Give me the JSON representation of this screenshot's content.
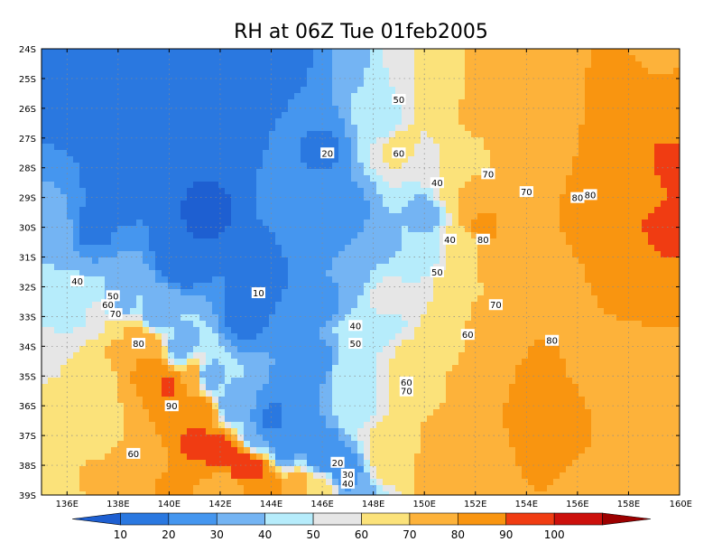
{
  "chart_data": {
    "type": "heatmap",
    "title": "RH at 06Z Tue 01feb2005",
    "xlim": [
      135,
      160
    ],
    "ylim": [
      -39,
      -24
    ],
    "x_ticks": [
      {
        "v": 136,
        "label": "136E"
      },
      {
        "v": 138,
        "label": "138E"
      },
      {
        "v": 140,
        "label": "140E"
      },
      {
        "v": 142,
        "label": "142E"
      },
      {
        "v": 144,
        "label": "144E"
      },
      {
        "v": 146,
        "label": "146E"
      },
      {
        "v": 148,
        "label": "148E"
      },
      {
        "v": 150,
        "label": "150E"
      },
      {
        "v": 152,
        "label": "152E"
      },
      {
        "v": 154,
        "label": "154E"
      },
      {
        "v": 156,
        "label": "156E"
      },
      {
        "v": 158,
        "label": "158E"
      },
      {
        "v": 160,
        "label": "160E"
      }
    ],
    "y_ticks": [
      {
        "v": -24,
        "label": "24S"
      },
      {
        "v": -25,
        "label": "25S"
      },
      {
        "v": -26,
        "label": "26S"
      },
      {
        "v": -27,
        "label": "27S"
      },
      {
        "v": -28,
        "label": "28S"
      },
      {
        "v": -29,
        "label": "29S"
      },
      {
        "v": -30,
        "label": "30S"
      },
      {
        "v": -31,
        "label": "31S"
      },
      {
        "v": -32,
        "label": "32S"
      },
      {
        "v": -33,
        "label": "33S"
      },
      {
        "v": -34,
        "label": "34S"
      },
      {
        "v": -35,
        "label": "35S"
      },
      {
        "v": -36,
        "label": "36S"
      },
      {
        "v": -37,
        "label": "37S"
      },
      {
        "v": -38,
        "label": "38S"
      },
      {
        "v": -39,
        "label": "39S"
      }
    ],
    "grid": true,
    "colorbar": {
      "levels": [
        0,
        10,
        20,
        30,
        40,
        50,
        60,
        70,
        80,
        90,
        100,
        110
      ],
      "labels": [
        "10",
        "20",
        "30",
        "40",
        "50",
        "60",
        "70",
        "80",
        "90",
        "100"
      ],
      "colors": [
        "#1e5fd1",
        "#2a78e0",
        "#4596ef",
        "#74b4f3",
        "#b6ecfb",
        "#e6e6e6",
        "#fbe27a",
        "#fdb23a",
        "#f99510",
        "#f03c12",
        "#cc100c",
        "#9c0000"
      ]
    },
    "field": {
      "v1": [
        [
          135.0,
          -39.0,
          62
        ],
        [
          135.4,
          -39.0,
          64
        ],
        [
          135.6,
          -37.6,
          60
        ],
        [
          135.0,
          -36.0,
          62
        ],
        [
          135.2,
          -34.5,
          58
        ],
        [
          136.0,
          -35.5,
          62
        ],
        [
          136.8,
          -35.0,
          63
        ],
        [
          136.8,
          -36.6,
          64
        ],
        [
          137.0,
          -38.4,
          71
        ],
        [
          138.5,
          -38.6,
          73
        ],
        [
          138.2,
          -37.0,
          70
        ],
        [
          137.3,
          -33.0,
          52
        ],
        [
          137.8,
          -33.5,
          66
        ],
        [
          138.0,
          -34.0,
          73
        ],
        [
          138.6,
          -33.7,
          72
        ],
        [
          139.2,
          -34.0,
          77
        ],
        [
          139.2,
          -34.8,
          84
        ],
        [
          140.0,
          -35.4,
          91
        ],
        [
          140.3,
          -36.4,
          85
        ],
        [
          141.0,
          -37.2,
          93
        ],
        [
          141.2,
          -36.2,
          90
        ],
        [
          142.0,
          -37.5,
          93
        ],
        [
          142.8,
          -38.0,
          96
        ],
        [
          143.5,
          -38.2,
          91
        ],
        [
          142.2,
          -38.8,
          73
        ],
        [
          144.0,
          -38.8,
          82
        ],
        [
          145.0,
          -38.7,
          74
        ],
        [
          146.0,
          -38.9,
          62
        ],
        [
          141.0,
          -35.0,
          76
        ],
        [
          139.0,
          -38.0,
          70
        ],
        [
          140.0,
          -38.8,
          82
        ],
        [
          138.0,
          -39.0,
          72
        ]
      ],
      "v2": [
        [
          135.0,
          -31.0,
          40
        ],
        [
          135.5,
          -30.0,
          33
        ],
        [
          135.0,
          -32.5,
          46
        ],
        [
          136.2,
          -32.5,
          40
        ],
        [
          138.0,
          -32.5,
          33
        ],
        [
          139.5,
          -33.0,
          33
        ],
        [
          140.5,
          -34.0,
          35
        ],
        [
          141.5,
          -35.0,
          34
        ],
        [
          142.5,
          -36.0,
          33
        ],
        [
          143.5,
          -37.0,
          30
        ],
        [
          144.5,
          -37.5,
          26
        ],
        [
          146.0,
          -37.6,
          20
        ],
        [
          147.0,
          -38.3,
          22
        ],
        [
          147.5,
          -38.8,
          34
        ],
        [
          148.5,
          -38.0,
          65
        ],
        [
          148.5,
          -37.0,
          62
        ],
        [
          147.5,
          -36.0,
          48
        ],
        [
          147.0,
          -35.0,
          47
        ],
        [
          147.0,
          -33.5,
          41
        ],
        [
          148.5,
          -33.2,
          46
        ],
        [
          149.5,
          -34.5,
          63
        ],
        [
          149.5,
          -35.8,
          66
        ],
        [
          148.5,
          -32.5,
          54
        ],
        [
          149.5,
          -31.8,
          50
        ],
        [
          150.0,
          -31.0,
          46
        ],
        [
          150.0,
          -29.5,
          36
        ],
        [
          148.5,
          -30.5,
          38
        ],
        [
          147.0,
          -31.5,
          32
        ],
        [
          147.0,
          -29.5,
          27
        ],
        [
          146.0,
          -27.5,
          19
        ],
        [
          145.5,
          -29.0,
          23
        ],
        [
          145.8,
          -30.5,
          24
        ],
        [
          146.0,
          -32.5,
          25
        ],
        [
          145.8,
          -34.5,
          23
        ],
        [
          144.0,
          -36.5,
          18
        ],
        [
          145.0,
          -35.8,
          20
        ],
        [
          140.5,
          -31.0,
          10
        ],
        [
          141.5,
          -29.5,
          8
        ],
        [
          138.0,
          -28.5,
          13
        ],
        [
          137.0,
          -30.0,
          18
        ],
        [
          136.0,
          -26.0,
          18
        ],
        [
          137.0,
          -24.5,
          17
        ],
        [
          139.5,
          -25.5,
          17
        ],
        [
          140.0,
          -27.5,
          10
        ],
        [
          142.0,
          -27.0,
          14
        ],
        [
          143.0,
          -25.0,
          15
        ],
        [
          144.5,
          -24.3,
          16
        ],
        [
          145.0,
          -26.0,
          20
        ],
        [
          143.5,
          -31.5,
          14
        ],
        [
          143.0,
          -33.0,
          17
        ],
        [
          147.0,
          -24.0,
          30
        ],
        [
          148.0,
          -25.0,
          40
        ],
        [
          148.5,
          -26.5,
          45
        ],
        [
          149.0,
          -27.2,
          66
        ],
        [
          150.0,
          -28.0,
          50
        ],
        [
          149.0,
          -24.5,
          58
        ],
        [
          150.5,
          -26.0,
          62
        ],
        [
          150.5,
          -24.3,
          68
        ],
        [
          151.5,
          -24.5,
          70
        ],
        [
          152.0,
          -26.2,
          72
        ],
        [
          151.5,
          -27.5,
          68
        ],
        [
          151.0,
          -28.5,
          66
        ],
        [
          151.8,
          -29.0,
          72
        ],
        [
          152.3,
          -30.0,
          83
        ],
        [
          151.7,
          -30.5,
          68
        ],
        [
          151.0,
          -32.0,
          66
        ],
        [
          152.0,
          -32.5,
          70
        ],
        [
          151.0,
          -33.2,
          68
        ],
        [
          150.8,
          -34.0,
          68
        ],
        [
          150.5,
          -35.5,
          70
        ],
        [
          150.5,
          -37.0,
          72
        ],
        [
          150.5,
          -38.5,
          78
        ],
        [
          151.5,
          -37.5,
          80
        ],
        [
          153.0,
          -31.0,
          73
        ],
        [
          154.0,
          -32.0,
          76
        ],
        [
          154.0,
          -29.5,
          75
        ],
        [
          153.8,
          -27.5,
          75
        ],
        [
          153.0,
          -26.0,
          73
        ],
        [
          153.0,
          -24.5,
          76
        ],
        [
          154.5,
          -24.5,
          78
        ],
        [
          155.0,
          -26.0,
          80
        ],
        [
          156.0,
          -25.0,
          80
        ],
        [
          157.0,
          -24.5,
          80
        ],
        [
          158.0,
          -25.0,
          83
        ],
        [
          159.0,
          -24.0,
          77
        ],
        [
          159.5,
          -26.0,
          85
        ],
        [
          159.5,
          -28.0,
          92
        ],
        [
          159.5,
          -30.0,
          92
        ],
        [
          158.5,
          -28.5,
          85
        ],
        [
          157.5,
          -27.5,
          82
        ],
        [
          156.5,
          -29.5,
          84
        ],
        [
          156.0,
          -31.0,
          80
        ],
        [
          158.0,
          -31.5,
          82
        ],
        [
          159.5,
          -33.0,
          80
        ],
        [
          157.5,
          -35.0,
          78
        ],
        [
          156.0,
          -34.5,
          78
        ],
        [
          155.0,
          -35.0,
          84
        ],
        [
          154.5,
          -36.0,
          85
        ],
        [
          155.2,
          -37.5,
          83
        ],
        [
          156.0,
          -38.5,
          78
        ],
        [
          153.0,
          -36.0,
          80
        ],
        [
          153.0,
          -38.5,
          80
        ],
        [
          152.0,
          -35.0,
          78
        ],
        [
          152.5,
          -33.5,
          76
        ],
        [
          154.5,
          -34.0,
          80
        ],
        [
          159.5,
          -36.5,
          77
        ],
        [
          159.5,
          -38.8,
          75
        ],
        [
          158.0,
          -38.0,
          77
        ]
      ]
    },
    "contour_labels": [
      {
        "x": 149.0,
        "y": -25.7,
        "text": "50"
      },
      {
        "x": 149.0,
        "y": -27.5,
        "text": "60"
      },
      {
        "x": 146.2,
        "y": -27.5,
        "text": "20"
      },
      {
        "x": 150.5,
        "y": -28.5,
        "text": "40"
      },
      {
        "x": 152.5,
        "y": -28.2,
        "text": "70"
      },
      {
        "x": 154.0,
        "y": -28.8,
        "text": "70"
      },
      {
        "x": 156.5,
        "y": -28.9,
        "text": "80"
      },
      {
        "x": 156.0,
        "y": -29.0,
        "text": "80"
      },
      {
        "x": 151.0,
        "y": -30.4,
        "text": "40"
      },
      {
        "x": 152.3,
        "y": -30.4,
        "text": "80"
      },
      {
        "x": 150.5,
        "y": -31.5,
        "text": "50"
      },
      {
        "x": 136.4,
        "y": -31.8,
        "text": "40"
      },
      {
        "x": 143.5,
        "y": -32.2,
        "text": "10"
      },
      {
        "x": 137.8,
        "y": -32.3,
        "text": "50"
      },
      {
        "x": 137.6,
        "y": -32.6,
        "text": "60"
      },
      {
        "x": 137.9,
        "y": -32.9,
        "text": "70"
      },
      {
        "x": 152.8,
        "y": -32.6,
        "text": "70"
      },
      {
        "x": 147.3,
        "y": -33.3,
        "text": "40"
      },
      {
        "x": 151.7,
        "y": -33.6,
        "text": "60"
      },
      {
        "x": 138.8,
        "y": -33.9,
        "text": "80"
      },
      {
        "x": 147.3,
        "y": -33.9,
        "text": "50"
      },
      {
        "x": 155.0,
        "y": -33.8,
        "text": "80"
      },
      {
        "x": 149.3,
        "y": -35.2,
        "text": "60"
      },
      {
        "x": 149.3,
        "y": -35.5,
        "text": "70"
      },
      {
        "x": 140.1,
        "y": -36.0,
        "text": "90"
      },
      {
        "x": 138.6,
        "y": -37.6,
        "text": "60"
      },
      {
        "x": 146.6,
        "y": -37.9,
        "text": "20"
      },
      {
        "x": 147.0,
        "y": -38.3,
        "text": "30"
      },
      {
        "x": 147.0,
        "y": -38.6,
        "text": "40"
      }
    ]
  }
}
